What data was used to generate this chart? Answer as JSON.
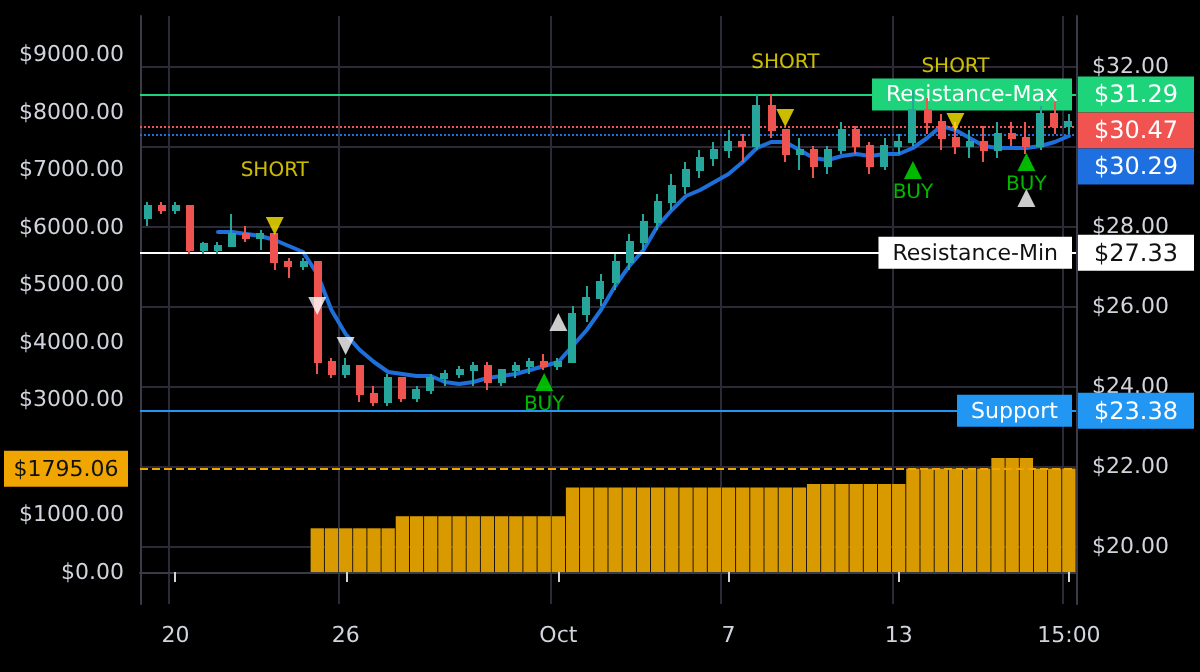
{
  "chart_data": {
    "type": "candlestick",
    "categories": [
      null,
      null,
      "20",
      null,
      null,
      null,
      null,
      null,
      null,
      null,
      null,
      null,
      null,
      null,
      "26",
      null,
      null,
      null,
      null,
      null,
      null,
      null,
      null,
      null,
      null,
      null,
      null,
      null,
      null,
      "Oct",
      null,
      null,
      null,
      null,
      null,
      null,
      null,
      null,
      null,
      null,
      null,
      "7",
      null,
      null,
      null,
      null,
      null,
      null,
      null,
      null,
      null,
      null,
      null,
      "13",
      null,
      null,
      null,
      null,
      null,
      null,
      null,
      null,
      null,
      null,
      null,
      "15:00"
    ],
    "series": [
      {
        "axis": "y2",
        "colors": [
          "#26a69a",
          "#ef5350",
          "#26a69a",
          "#ef5350",
          "#26a69a",
          "#26a69a",
          "#26a69a",
          "#ef5350",
          "#26a69a",
          "#ef5350",
          "#ef5350",
          "#26a69a",
          "#ef5350",
          "#ef5350",
          "#26a69a",
          "#ef5350",
          "#ef5350",
          "#26a69a",
          "#ef5350",
          "#26a69a",
          "#26a69a",
          "#26a69a",
          "#26a69a",
          "#26a69a",
          "#ef5350",
          "#26a69a",
          "#26a69a",
          "#26a69a",
          "#ef5350",
          "#26a69a",
          "#26a69a",
          "#26a69a",
          "#26a69a",
          "#26a69a",
          "#26a69a",
          "#26a69a",
          "#26a69a",
          "#26a69a",
          "#26a69a",
          "#26a69a",
          "#26a69a",
          "#26a69a",
          "#ef5350",
          "#26a69a",
          "#ef5350",
          "#ef5350",
          "#26a69a",
          "#ef5350",
          "#26a69a",
          "#26a69a",
          "#ef5350",
          "#ef5350",
          "#26a69a",
          "#26a69a",
          "#26a69a",
          "#ef5350",
          "#ef5350",
          "#ef5350",
          "#26a69a",
          "#ef5350",
          "#26a69a",
          "#ef5350",
          "#ef5350",
          "#26a69a",
          "#ef5350",
          "#26a69a"
        ],
        "ohlc": [
          [
            28.2,
            28.6,
            28.0,
            28.5
          ],
          [
            28.5,
            28.6,
            28.3,
            28.4
          ],
          [
            28.4,
            28.6,
            28.3,
            28.5
          ],
          [
            28.5,
            28.5,
            27.3,
            27.4
          ],
          [
            27.4,
            27.6,
            27.3,
            27.55
          ],
          [
            27.4,
            27.6,
            27.3,
            27.5
          ],
          [
            27.5,
            28.3,
            27.5,
            27.8
          ],
          [
            27.8,
            28.0,
            27.6,
            27.7
          ],
          [
            27.7,
            27.9,
            27.4,
            27.8
          ],
          [
            27.8,
            27.8,
            26.9,
            27.1
          ],
          [
            27.1,
            27.2,
            26.7,
            27.0
          ],
          [
            27.0,
            27.2,
            26.9,
            27.1
          ],
          [
            27.1,
            27.1,
            24.3,
            24.6
          ],
          [
            24.6,
            24.7,
            24.2,
            24.3
          ],
          [
            24.3,
            24.7,
            24.2,
            24.5
          ],
          [
            24.5,
            24.5,
            23.6,
            23.8
          ],
          [
            23.8,
            24.0,
            23.5,
            23.6
          ],
          [
            23.6,
            24.3,
            23.5,
            24.2
          ],
          [
            24.2,
            24.2,
            23.6,
            23.7
          ],
          [
            23.7,
            24.0,
            23.6,
            23.9
          ],
          [
            23.9,
            24.3,
            23.8,
            24.2
          ],
          [
            24.2,
            24.4,
            24.0,
            24.3
          ],
          [
            24.3,
            24.5,
            24.2,
            24.4
          ],
          [
            24.4,
            24.6,
            24.0,
            24.5
          ],
          [
            24.5,
            24.6,
            23.9,
            24.1
          ],
          [
            24.1,
            24.4,
            24.0,
            24.4
          ],
          [
            24.4,
            24.6,
            24.2,
            24.5
          ],
          [
            24.5,
            24.7,
            24.3,
            24.6
          ],
          [
            24.6,
            24.8,
            24.4,
            24.5
          ],
          [
            24.5,
            24.7,
            24.4,
            24.6
          ],
          [
            24.6,
            26.0,
            24.6,
            25.8
          ],
          [
            25.8,
            26.5,
            25.6,
            26.2
          ],
          [
            26.2,
            26.8,
            26.0,
            26.6
          ],
          [
            26.6,
            27.3,
            26.4,
            27.1
          ],
          [
            27.1,
            27.8,
            26.9,
            27.6
          ],
          [
            27.6,
            28.3,
            27.4,
            28.1
          ],
          [
            28.1,
            28.8,
            27.9,
            28.6
          ],
          [
            28.6,
            29.3,
            28.4,
            29.0
          ],
          [
            29.0,
            29.6,
            28.8,
            29.4
          ],
          [
            29.4,
            29.9,
            29.2,
            29.7
          ],
          [
            29.7,
            30.1,
            29.5,
            29.9
          ],
          [
            29.9,
            30.4,
            29.7,
            30.1
          ],
          [
            30.1,
            30.3,
            29.6,
            30.0
          ],
          [
            30.0,
            31.3,
            29.9,
            31.0
          ],
          [
            31.0,
            31.3,
            30.2,
            30.4
          ],
          [
            30.4,
            30.4,
            29.6,
            29.8
          ],
          [
            29.8,
            30.2,
            29.4,
            29.9
          ],
          [
            29.9,
            30.0,
            29.2,
            29.5
          ],
          [
            29.5,
            30.0,
            29.3,
            29.9
          ],
          [
            29.9,
            30.6,
            29.8,
            30.4
          ],
          [
            30.4,
            30.5,
            29.8,
            30.0
          ],
          [
            30.0,
            30.1,
            29.3,
            29.5
          ],
          [
            29.5,
            30.2,
            29.4,
            30.0
          ],
          [
            30.0,
            30.3,
            29.8,
            30.1
          ],
          [
            30.1,
            31.4,
            30.0,
            30.9
          ],
          [
            30.9,
            31.2,
            30.3,
            30.6
          ],
          [
            30.6,
            30.8,
            29.9,
            30.2
          ],
          [
            30.2,
            30.6,
            29.8,
            30.0
          ],
          [
            30.0,
            30.4,
            29.7,
            30.1
          ],
          [
            30.1,
            30.5,
            29.6,
            29.9
          ],
          [
            29.9,
            30.6,
            29.7,
            30.3
          ],
          [
            30.3,
            30.6,
            30.0,
            30.2
          ],
          [
            30.2,
            30.6,
            29.8,
            30.0
          ],
          [
            30.0,
            31.0,
            29.9,
            30.8
          ],
          [
            30.8,
            31.1,
            30.3,
            30.5
          ],
          [
            30.5,
            30.8,
            30.3,
            30.6
          ]
        ]
      },
      {
        "type": "line",
        "axis": "y2",
        "color": "#1e6fd9",
        "marker": "none",
        "values": [
          null,
          null,
          null,
          null,
          null,
          27.85,
          27.85,
          27.8,
          27.75,
          27.65,
          27.5,
          27.35,
          26.8,
          25.9,
          25.3,
          24.9,
          24.6,
          24.35,
          24.3,
          24.25,
          24.25,
          24.1,
          24.05,
          24.1,
          24.2,
          24.25,
          24.3,
          24.4,
          24.5,
          24.6,
          25.0,
          25.4,
          25.9,
          26.5,
          27.0,
          27.4,
          28.0,
          28.4,
          28.75,
          28.9,
          29.1,
          29.3,
          29.6,
          29.95,
          30.1,
          30.1,
          29.9,
          29.7,
          29.65,
          29.75,
          29.8,
          29.75,
          29.8,
          29.8,
          29.95,
          30.2,
          30.5,
          30.4,
          30.2,
          30.0,
          29.95,
          29.95,
          29.95,
          30.0,
          30.1,
          30.25
        ]
      },
      {
        "type": "bar",
        "color": "#d99a00",
        "values": [
          0,
          0,
          0,
          0,
          0,
          0,
          0,
          0,
          0,
          0,
          0,
          0,
          760,
          760,
          760,
          760,
          760,
          760,
          970,
          970,
          970,
          970,
          970,
          970,
          970,
          970,
          970,
          970,
          970,
          970,
          1470,
          1470,
          1470,
          1470,
          1470,
          1470,
          1470,
          1470,
          1470,
          1470,
          1470,
          1470,
          1470,
          1470,
          1470,
          1470,
          1470,
          1530,
          1530,
          1530,
          1530,
          1530,
          1530,
          1530,
          1800,
          1800,
          1800,
          1800,
          1800,
          1800,
          1980,
          1980,
          1980,
          1800,
          1800,
          1800
        ]
      },
      {
        "type": "scatter",
        "axis": "y2",
        "color": "#ffeb00",
        "marker": "triangle",
        "values": [
          null,
          null,
          null,
          null,
          null,
          null,
          null,
          null,
          null,
          28.0,
          null,
          null,
          null,
          null,
          null,
          null,
          null,
          null,
          null,
          null,
          null,
          null,
          null,
          null,
          null,
          null,
          null,
          null,
          null,
          null,
          null,
          null,
          null,
          null,
          null,
          null,
          null,
          null,
          null,
          null,
          null,
          null,
          null,
          null,
          null,
          30.7,
          null,
          null,
          null,
          null,
          null,
          null,
          null,
          null,
          null,
          null,
          null,
          30.6,
          null,
          null,
          null,
          null,
          null,
          null,
          null,
          null
        ],
        "value_labels": [
          null,
          null,
          null,
          null,
          null,
          null,
          null,
          null,
          null,
          "SHORT",
          null,
          null,
          null,
          null,
          null,
          null,
          null,
          null,
          null,
          null,
          null,
          null,
          null,
          null,
          null,
          null,
          null,
          null,
          null,
          null,
          null,
          null,
          null,
          null,
          null,
          null,
          null,
          null,
          null,
          null,
          null,
          null,
          null,
          null,
          null,
          "SHORT",
          null,
          null,
          null,
          null,
          null,
          null,
          null,
          null,
          null,
          null,
          null,
          "SHORT",
          null,
          null,
          null,
          null,
          null,
          null,
          null,
          null
        ]
      },
      {
        "type": "scatter",
        "axis": "y2",
        "color": "#00e600",
        "marker": "triangle",
        "values": [
          null,
          null,
          null,
          null,
          null,
          null,
          null,
          null,
          null,
          null,
          null,
          null,
          null,
          null,
          null,
          null,
          null,
          null,
          null,
          null,
          null,
          null,
          null,
          null,
          null,
          null,
          null,
          null,
          24.1,
          null,
          null,
          null,
          null,
          null,
          null,
          null,
          null,
          null,
          null,
          null,
          null,
          null,
          null,
          null,
          null,
          null,
          null,
          null,
          null,
          null,
          null,
          null,
          null,
          null,
          29.4,
          null,
          null,
          null,
          null,
          null,
          null,
          null,
          29.6,
          null,
          null,
          null
        ],
        "value_labels": [
          null,
          null,
          null,
          null,
          null,
          null,
          null,
          null,
          null,
          null,
          null,
          null,
          null,
          null,
          null,
          null,
          null,
          null,
          null,
          null,
          null,
          null,
          null,
          null,
          null,
          null,
          null,
          null,
          "BUY",
          null,
          null,
          null,
          null,
          null,
          null,
          null,
          null,
          null,
          null,
          null,
          null,
          null,
          null,
          null,
          null,
          null,
          null,
          null,
          null,
          null,
          null,
          null,
          null,
          null,
          "BUY",
          null,
          null,
          null,
          null,
          null,
          null,
          null,
          "BUY",
          null,
          null,
          null
        ]
      },
      {
        "type": "scatter",
        "axis": "y2",
        "color": "#ffffff",
        "marker": "triangle",
        "values": [
          null,
          null,
          null,
          null,
          null,
          null,
          null,
          null,
          null,
          null,
          null,
          null,
          26.0,
          null,
          25.0,
          null,
          null,
          null,
          null,
          null,
          null,
          null,
          null,
          null,
          null,
          null,
          null,
          null,
          null,
          null,
          null,
          null,
          null,
          null,
          null,
          null,
          null,
          null,
          null,
          null,
          null,
          null,
          null,
          null,
          null,
          null,
          null,
          null,
          null,
          null,
          null,
          null,
          null,
          null,
          null,
          null,
          null,
          null,
          null,
          null,
          null,
          null,
          null,
          null,
          null,
          null
        ]
      },
      {
        "type": "scatter",
        "axis": "y2",
        "color": "#ffffff",
        "marker": "triangle",
        "values": [
          null,
          null,
          null,
          null,
          null,
          null,
          null,
          null,
          null,
          null,
          null,
          null,
          null,
          null,
          null,
          null,
          null,
          null,
          null,
          null,
          null,
          null,
          null,
          null,
          null,
          null,
          null,
          null,
          null,
          25.6,
          null,
          null,
          null,
          null,
          null,
          null,
          null,
          null,
          null,
          null,
          null,
          null,
          null,
          null,
          null,
          null,
          null,
          null,
          null,
          null,
          null,
          null,
          null,
          null,
          null,
          null,
          null,
          null,
          null,
          null,
          null,
          null,
          28.7,
          null,
          null,
          null
        ]
      }
    ],
    "ylim": [
      -555,
      9660
    ],
    "yticks": [
      {
        "value": 0,
        "label": "$0.00"
      },
      {
        "value": 1000,
        "label": "$1000.00"
      },
      {
        "value": 3000,
        "label": "$3000.00"
      },
      {
        "value": 4000,
        "label": "$4000.00"
      },
      {
        "value": 5000,
        "label": "$5000.00"
      },
      {
        "value": 6000,
        "label": "$6000.00"
      },
      {
        "value": 7000,
        "label": "$7000.00"
      },
      {
        "value": 8000,
        "label": "$8000.00"
      },
      {
        "value": 9000,
        "label": "$9000.00"
      }
    ],
    "y2lim": [
      18.55,
      33.25
    ],
    "y2ticks": [
      {
        "value": 20,
        "label": "$20.00"
      },
      {
        "value": 22,
        "label": "$22.00"
      },
      {
        "value": 24,
        "label": "$24.00"
      },
      {
        "value": 26,
        "label": "$26.00"
      },
      {
        "value": 28,
        "label": "$28.00"
      },
      {
        "value": 30,
        "label": null
      },
      {
        "value": 32,
        "label": "$32.00"
      }
    ],
    "grid": true,
    "annotations": [
      "$31.29",
      "$30.47",
      "$30.29",
      "$27.33",
      "$23.38",
      "$1795.06"
    ],
    "ref_lines": [
      {
        "axis": "y2",
        "value": 31.29,
        "label": "Resistance-Max",
        "color": "#1ed47a",
        "line_style": "solid"
      },
      {
        "axis": "y2",
        "value": 30.47,
        "color": "#f05350",
        "line_style": "dotted"
      },
      {
        "axis": "y2",
        "value": 30.29,
        "color": "#1e6fe0",
        "line_style": "dotted"
      },
      {
        "axis": "y2",
        "value": 27.33,
        "label": "Resistance-Min",
        "color": "#ffffff",
        "line_style": "solid"
      },
      {
        "axis": "y2",
        "value": 23.38,
        "label": "Support",
        "color": "#2196f3",
        "line_style": "solid"
      },
      {
        "axis": "y",
        "value": 1795.06,
        "color": "#f0a500",
        "line_style": "dashed"
      }
    ]
  }
}
